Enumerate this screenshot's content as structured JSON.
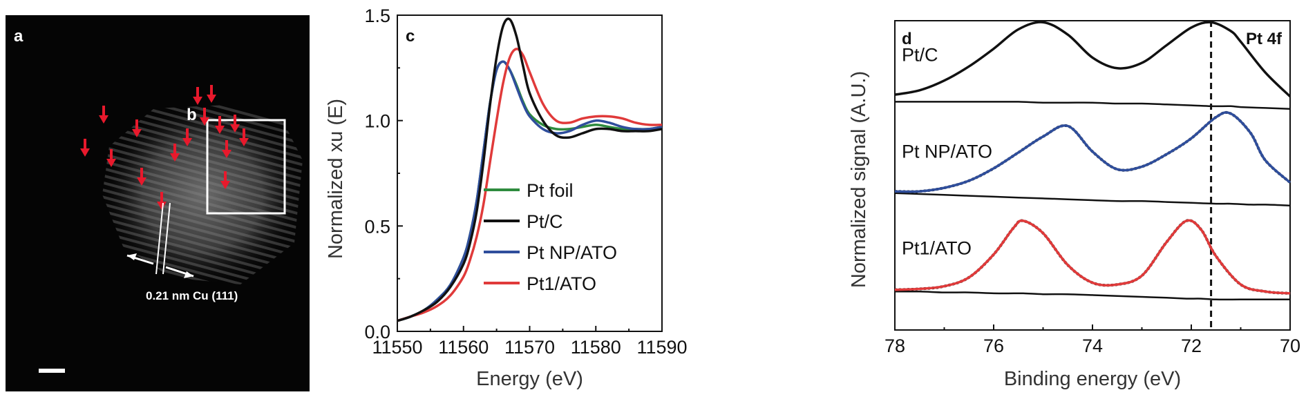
{
  "panel_a": {
    "letter": "a",
    "inset_letter": "b",
    "annotation": "0.21 nm Cu (111)",
    "colors": {
      "arrow": "#e8192c",
      "box": "#ffffff",
      "background": "#050505"
    }
  },
  "chart_data": [
    {
      "panel": "c",
      "type": "line",
      "title": "",
      "xlabel": "Energy (eV)",
      "ylabel": "Normalized xu (E)",
      "xlim": [
        11550,
        11590
      ],
      "ylim": [
        0.0,
        1.5
      ],
      "xticks": [
        11550,
        11560,
        11570,
        11580,
        11590
      ],
      "yticks": [
        0.0,
        0.5,
        1.0,
        1.5
      ],
      "xtick_labels": [
        "11550",
        "11560",
        "11570",
        "11580",
        "11590"
      ],
      "ytick_labels": [
        "0.0",
        "0.5",
        "1.0",
        "1.5"
      ],
      "legend_position": "lower-right",
      "grid": false,
      "series": [
        {
          "name": "Pt foil",
          "color": "#2e8b3e",
          "x": [
            11550,
            11552,
            11554,
            11556,
            11558,
            11560,
            11561,
            11562,
            11563,
            11564,
            11565,
            11566,
            11567,
            11568,
            11569,
            11570,
            11572,
            11574,
            11576,
            11578,
            11580,
            11582,
            11584,
            11586,
            11588,
            11590
          ],
          "y": [
            0.05,
            0.07,
            0.1,
            0.15,
            0.22,
            0.35,
            0.46,
            0.62,
            0.85,
            1.08,
            1.24,
            1.28,
            1.24,
            1.17,
            1.09,
            1.03,
            0.98,
            0.96,
            0.96,
            0.97,
            0.98,
            0.97,
            0.96,
            0.96,
            0.96,
            0.97
          ]
        },
        {
          "name": "Pt/C",
          "color": "#111111",
          "x": [
            11550,
            11552,
            11554,
            11556,
            11558,
            11560,
            11561,
            11562,
            11563,
            11564,
            11565,
            11566,
            11567,
            11568,
            11569,
            11570,
            11572,
            11574,
            11576,
            11578,
            11580,
            11582,
            11584,
            11586,
            11588,
            11590
          ],
          "y": [
            0.05,
            0.07,
            0.1,
            0.14,
            0.21,
            0.32,
            0.42,
            0.57,
            0.8,
            1.07,
            1.3,
            1.45,
            1.48,
            1.4,
            1.26,
            1.13,
            1.0,
            0.93,
            0.92,
            0.94,
            0.96,
            0.96,
            0.95,
            0.95,
            0.95,
            0.96
          ]
        },
        {
          "name": "Pt NP/ATO",
          "color": "#2f4e9c",
          "x": [
            11550,
            11552,
            11554,
            11556,
            11558,
            11560,
            11561,
            11562,
            11563,
            11564,
            11565,
            11566,
            11567,
            11568,
            11569,
            11570,
            11572,
            11574,
            11576,
            11578,
            11580,
            11582,
            11584,
            11586,
            11588,
            11590
          ],
          "y": [
            0.05,
            0.07,
            0.1,
            0.15,
            0.22,
            0.35,
            0.46,
            0.62,
            0.85,
            1.08,
            1.24,
            1.28,
            1.24,
            1.16,
            1.08,
            1.02,
            0.96,
            0.94,
            0.95,
            0.98,
            1.0,
            0.99,
            0.97,
            0.96,
            0.96,
            0.97
          ]
        },
        {
          "name": "Pt1/ATO",
          "color": "#e03a3a",
          "x": [
            11550,
            11552,
            11554,
            11556,
            11558,
            11560,
            11561,
            11562,
            11563,
            11564,
            11565,
            11566,
            11567,
            11568,
            11569,
            11570,
            11572,
            11574,
            11576,
            11578,
            11580,
            11582,
            11584,
            11586,
            11588,
            11590
          ],
          "y": [
            0.05,
            0.07,
            0.09,
            0.12,
            0.17,
            0.26,
            0.34,
            0.45,
            0.6,
            0.8,
            1.0,
            1.18,
            1.3,
            1.34,
            1.31,
            1.23,
            1.08,
            1.0,
            0.99,
            1.01,
            1.02,
            1.02,
            1.01,
            0.99,
            0.98,
            0.98
          ]
        }
      ]
    },
    {
      "panel": "d",
      "type": "line",
      "title": "Pt 4f",
      "xlabel": "Binding energy (eV)",
      "ylabel": "Normalized signal (A.U.)",
      "xlim": [
        78,
        70
      ],
      "x_reversed": true,
      "xticks": [
        78,
        76,
        74,
        72,
        70
      ],
      "xtick_labels": [
        "78",
        "76",
        "74",
        "72",
        "70"
      ],
      "reference_line_x": 71.6,
      "grid": false,
      "series": [
        {
          "name": "Pt/C",
          "color": "#111111",
          "x": [
            78,
            77.5,
            77,
            76.5,
            76,
            75.5,
            75,
            74.5,
            74,
            73.5,
            73,
            72.5,
            72,
            71.6,
            71.2,
            71,
            70.5,
            70
          ],
          "y": [
            0.1,
            0.15,
            0.26,
            0.42,
            0.62,
            0.84,
            0.92,
            0.78,
            0.52,
            0.4,
            0.46,
            0.66,
            0.86,
            0.92,
            0.82,
            0.7,
            0.35,
            0.08
          ],
          "baseline": [
            0.02,
            0.02,
            0.02,
            0.02,
            0.02,
            0.02,
            0.01,
            0.01,
            0.01,
            0.0,
            0.0,
            -0.01,
            -0.02,
            -0.03,
            -0.03,
            -0.04,
            -0.05,
            -0.06
          ],
          "offset": 2.0
        },
        {
          "name": "Pt NP/ATO",
          "color": "#2f4e9c",
          "x": [
            78,
            77.5,
            77,
            76.5,
            76,
            75.5,
            75,
            74.5,
            74,
            73.5,
            73,
            72.5,
            72,
            71.5,
            71.2,
            70.8,
            70.5,
            70
          ],
          "y": [
            0.1,
            0.1,
            0.14,
            0.22,
            0.36,
            0.54,
            0.72,
            0.84,
            0.55,
            0.35,
            0.38,
            0.52,
            0.7,
            0.94,
            0.98,
            0.76,
            0.45,
            0.2
          ],
          "baseline": [
            0.08,
            0.07,
            0.06,
            0.05,
            0.04,
            0.03,
            0.02,
            0.01,
            0.0,
            -0.01,
            -0.01,
            -0.02,
            -0.03,
            -0.04,
            -0.04,
            -0.05,
            -0.05,
            -0.06
          ],
          "offset": 1.0
        },
        {
          "name": "Pt1/ATO",
          "color": "#e03a3a",
          "x": [
            78,
            77.5,
            77,
            76.5,
            76,
            75.6,
            75.4,
            75,
            74.5,
            74,
            73.5,
            73,
            72.5,
            72.1,
            71.8,
            71.5,
            71,
            70.5,
            70
          ],
          "y": [
            0.08,
            0.09,
            0.12,
            0.22,
            0.48,
            0.78,
            0.86,
            0.72,
            0.36,
            0.16,
            0.14,
            0.24,
            0.62,
            0.86,
            0.76,
            0.46,
            0.14,
            0.06,
            0.04
          ],
          "baseline": [
            0.06,
            0.06,
            0.05,
            0.05,
            0.04,
            0.04,
            0.04,
            0.03,
            0.03,
            0.02,
            0.01,
            0.0,
            -0.01,
            -0.02,
            -0.02,
            -0.03,
            -0.03,
            -0.03,
            -0.03
          ],
          "offset": 0.0
        }
      ]
    }
  ]
}
